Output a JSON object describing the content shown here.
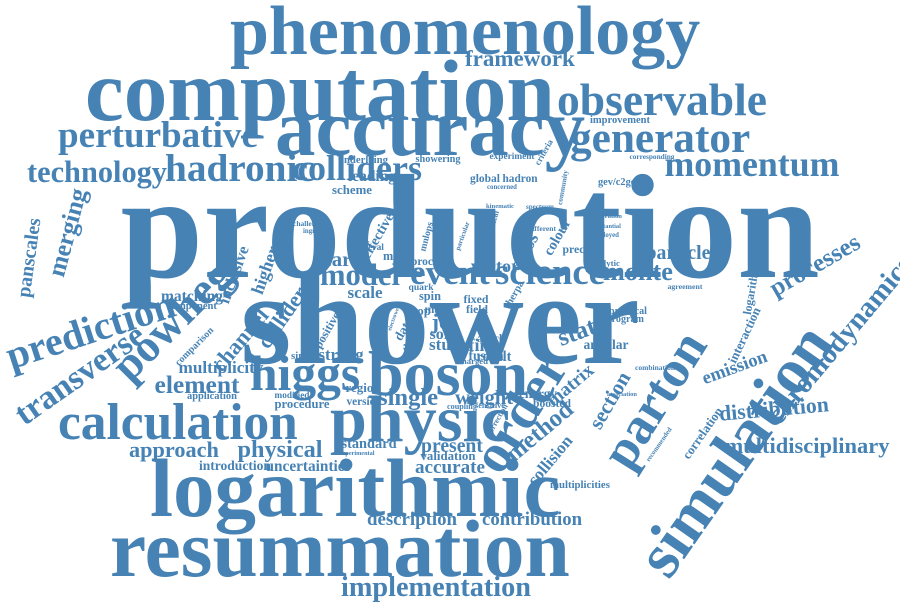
{
  "color": "#4682b4",
  "words": {
    "phenomenology": "phenomenology",
    "framework": "framework",
    "computation": "computation",
    "observable": "observable",
    "perturbative": "perturbative",
    "accuracy": "accuracy",
    "improvement": "improvement",
    "generator": "generator",
    "technology": "technology",
    "hadronic": "hadronic",
    "colliders": "colliders",
    "momentum": "momentum",
    "production": "production",
    "panscales": "panscales",
    "merging": "merging",
    "powheg": "powheg",
    "prediction": "prediction",
    "transverse": "transverse",
    "shower": "shower",
    "parton": "parton",
    "simulation": "simulation",
    "processes": "processes",
    "chromodynamics": "chromodynamics",
    "particle": "particle",
    "monte": "monte",
    "model": "model",
    "event": "event",
    "science": "science",
    "carlo": "carlo",
    "vector": "vector",
    "matching": "matching",
    "component": "component",
    "inclusive": "inclusive",
    "higher": "higher",
    "channel": "channel",
    "collider": "collider",
    "multiplicity": "multiplicity",
    "element": "element",
    "higgs": "higgs",
    "boson": "boson",
    "calculation": "calculation",
    "physic": "physic",
    "approach": "approach",
    "physical": "physical",
    "standard": "standard",
    "introduction": "introduction",
    "uncertainties": "uncertainties",
    "logarithmic": "logarithmic",
    "resummation": "resummation",
    "implementation": "implementation",
    "description": "description",
    "contribution": "contribution",
    "accurate": "accurate",
    "present": "present",
    "validation": "validation",
    "order": "order",
    "method": "method",
    "collision": "collision",
    "single": "single",
    "weight": "weight",
    "study": "study",
    "final": "final",
    "result": "result",
    "state": "state",
    "matrix": "matrix",
    "section": "section",
    "energy": "energy",
    "boosted": "boosted",
    "angular": "angular",
    "emission": "emission",
    "interaction": "interaction",
    "correlation": "correlation",
    "distribution": "distribution",
    "multidisciplinary": "multidisciplinary",
    "multiplicities": "multiplicities",
    "leading": "leading",
    "scheme": "scheme",
    "underlying": "underlying",
    "showering": "showering",
    "experiment": "experiment",
    "global": "global",
    "hadron": "hadron",
    "cross": "cross",
    "colour": "colour",
    "effective": "effective",
    "precise": "precise",
    "mnlops": "mnlops",
    "minlo": "minlo",
    "proc": "proc",
    "fusion": "fusion",
    "jet": "jet",
    "soft": "soft",
    "scale": "scale",
    "positive": "positive",
    "strong": "strong",
    "simple": "simple",
    "version": "version",
    "region": "region",
    "procedure": "procedure",
    "modified": "modified",
    "application": "application",
    "comparison": "comparison",
    "agreement": "agreement",
    "practical": "practical",
    "program": "program",
    "recommended": "recommended",
    "combination": "combination",
    "corresponding": "corresponding",
    "gevc2gevc": "gev/c2gev/c",
    "logarithm": "logarithm",
    "general": "general",
    "ingredient": "ingredient",
    "challenge": "challenge",
    "exponentiation": "exponentiation",
    "experimental": "experimental",
    "sherpa": "sherpa",
    "fixed": "fixed",
    "theory": "theory",
    "data": "data",
    "spin": "spin",
    "mass": "mass",
    "field": "field",
    "article": "article",
    "coupling": "coupling",
    "sensitive": "sensitive",
    "correction": "correction",
    "charged": "charged",
    "electroweak": "electroweak",
    "top": "top",
    "quark": "quark",
    "association": "association",
    "numerical": "numerical",
    "analytic": "analytic",
    "community": "community",
    "concerned": "concerned",
    "generation": "generation",
    "substantial": "substantial",
    "employed": "employed",
    "criteria": "criteria",
    "kinematic": "kinematic",
    "spectrum": "spectrum",
    "different": "different",
    "particular": "particular"
  }
}
